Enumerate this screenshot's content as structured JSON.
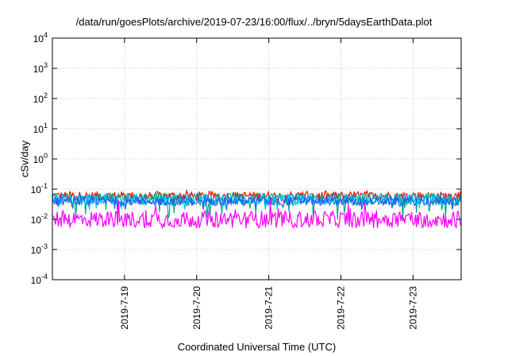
{
  "chart_data": {
    "type": "line",
    "title": "/data/run/goesPlots/archive/2019-07-23/16:00/flux/../bryn/5daysEarthData.plot",
    "xlabel": "Coordinated Universal Time (UTC)",
    "ylabel": "cSv/day",
    "yscale": "log",
    "ylim": [
      0.0001,
      10000
    ],
    "yticks": [
      {
        "base": "10",
        "exp": "-4"
      },
      {
        "base": "10",
        "exp": "-3"
      },
      {
        "base": "10",
        "exp": "-2"
      },
      {
        "base": "10",
        "exp": "-1"
      },
      {
        "base": "10",
        "exp": "0"
      },
      {
        "base": "10",
        "exp": "1"
      },
      {
        "base": "10",
        "exp": "2"
      },
      {
        "base": "10",
        "exp": "3"
      },
      {
        "base": "10",
        "exp": "4"
      }
    ],
    "xlim": [
      "2019-07-18 00:00",
      "2019-07-23 16:00"
    ],
    "xticks": [
      "2019-7-19",
      "2019-7-20",
      "2019-7-21",
      "2019-7-22",
      "2019-7-23"
    ],
    "grid": true,
    "series": [
      {
        "color": "#ff0000",
        "approx_range": [
          0.03,
          0.09
        ],
        "typical": 0.06
      },
      {
        "color": "#00aa88",
        "approx_range": [
          0.01,
          0.07
        ],
        "typical": 0.05
      },
      {
        "color": "#00c8ff",
        "approx_range": [
          0.02,
          0.07
        ],
        "typical": 0.045
      },
      {
        "color": "#1e5aff",
        "approx_range": [
          0.02,
          0.06
        ],
        "typical": 0.04
      },
      {
        "color": "#ff00ff",
        "approx_range": [
          0.005,
          0.045
        ],
        "typical": 0.01
      }
    ]
  }
}
